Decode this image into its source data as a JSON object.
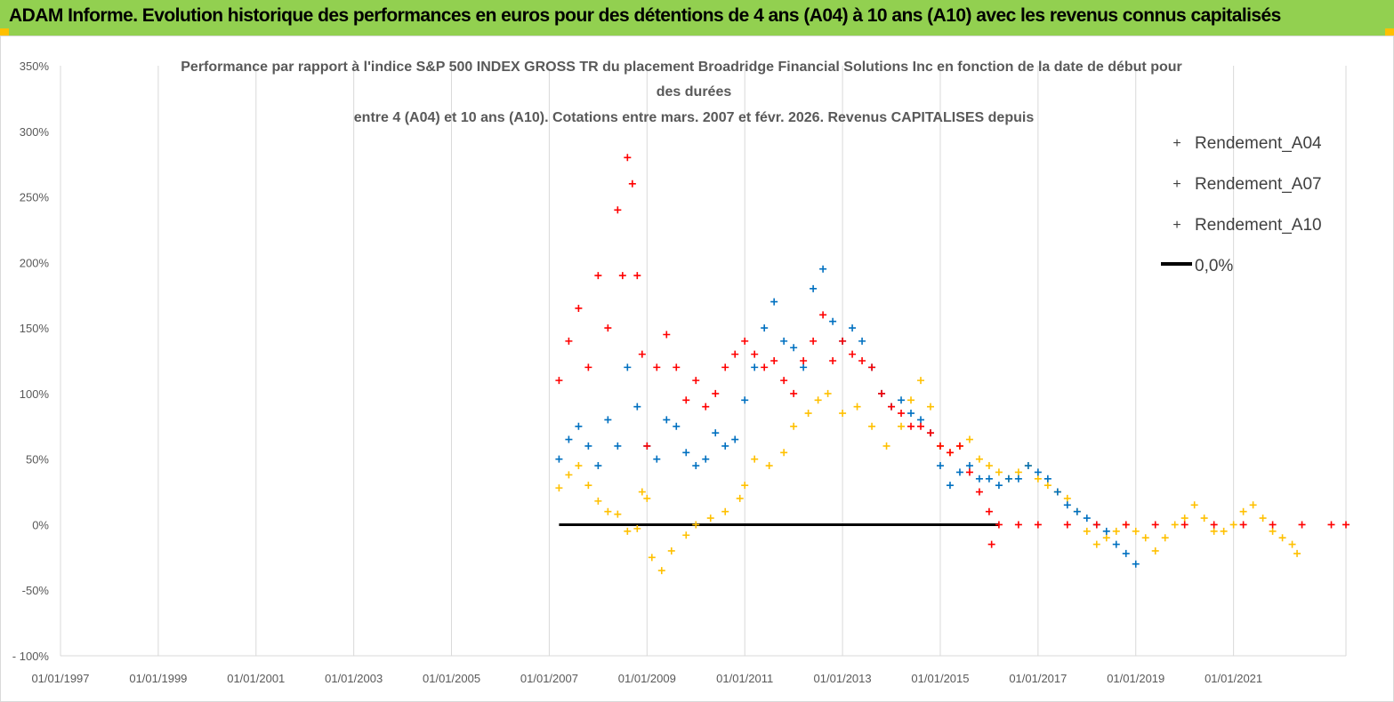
{
  "banner": {
    "title": "ADAM Informe. Evolution historique des performances en euros pour des détentions de 4 ans (A04) à 10 ans (A10) avec les revenus connus capitalisés",
    "background": "#92d050",
    "corner_color": "#ffc000"
  },
  "chart_data": {
    "type": "scatter",
    "title_lines": [
      "Performance par rapport à l'indice S&P 500 INDEX GROSS TR  du placement Broadridge Financial Solutions Inc en fonction de la date de début pour",
      "des durées",
      "entre 4 (A04) et 10 ans (A10). Cotations entre mars. 2007 et févr. 2026. Revenus CAPITALISES depuis"
    ],
    "xlabel": "",
    "ylabel": "",
    "xlim": [
      1997.0,
      2023.3
    ],
    "ylim": [
      -100,
      350
    ],
    "x_ticks": [
      1997,
      1999,
      2001,
      2003,
      2005,
      2007,
      2009,
      2011,
      2013,
      2015,
      2017,
      2019,
      2021
    ],
    "x_tick_labels": [
      "01/01/1997",
      "01/01/1999",
      "01/01/2001",
      "01/01/2003",
      "01/01/2005",
      "01/01/2007",
      "01/01/2009",
      "01/01/2011",
      "01/01/2013",
      "01/01/2015",
      "01/01/2017",
      "01/01/2019",
      "01/01/2021"
    ],
    "y_ticks": [
      -100,
      -50,
      0,
      50,
      100,
      150,
      200,
      250,
      300,
      350
    ],
    "y_tick_labels": [
      "- 100%",
      "-50%",
      "0%",
      "50%",
      "100%",
      "150%",
      "200%",
      "250%",
      "300%",
      "350%"
    ],
    "grid": "vertical",
    "legend_position": "right",
    "series": [
      {
        "name": "Rendement_A04",
        "marker": "+",
        "color": "#ffc000",
        "points": [
          [
            2007.2,
            28
          ],
          [
            2007.4,
            38
          ],
          [
            2007.6,
            45
          ],
          [
            2007.8,
            30
          ],
          [
            2008.0,
            18
          ],
          [
            2008.2,
            10
          ],
          [
            2008.4,
            8
          ],
          [
            2008.6,
            -5
          ],
          [
            2008.8,
            -3
          ],
          [
            2008.9,
            25
          ],
          [
            2009.0,
            20
          ],
          [
            2009.1,
            -25
          ],
          [
            2009.3,
            -35
          ],
          [
            2009.5,
            -20
          ],
          [
            2009.8,
            -8
          ],
          [
            2010.0,
            0
          ],
          [
            2010.3,
            5
          ],
          [
            2010.6,
            10
          ],
          [
            2010.9,
            20
          ],
          [
            2011.0,
            30
          ],
          [
            2011.2,
            50
          ],
          [
            2011.5,
            45
          ],
          [
            2011.8,
            55
          ],
          [
            2012.0,
            75
          ],
          [
            2012.3,
            85
          ],
          [
            2012.5,
            95
          ],
          [
            2012.7,
            100
          ],
          [
            2013.0,
            85
          ],
          [
            2013.3,
            90
          ],
          [
            2013.6,
            75
          ],
          [
            2013.9,
            60
          ],
          [
            2014.2,
            75
          ],
          [
            2014.4,
            95
          ],
          [
            2014.6,
            110
          ],
          [
            2014.8,
            90
          ],
          [
            2015.0,
            60
          ],
          [
            2015.2,
            55
          ],
          [
            2015.4,
            60
          ],
          [
            2015.6,
            65
          ],
          [
            2015.8,
            50
          ],
          [
            2016.0,
            45
          ],
          [
            2016.2,
            40
          ],
          [
            2016.4,
            35
          ],
          [
            2016.6,
            40
          ],
          [
            2016.8,
            45
          ],
          [
            2017.0,
            35
          ],
          [
            2017.2,
            30
          ],
          [
            2017.4,
            25
          ],
          [
            2017.6,
            20
          ],
          [
            2017.8,
            10
          ],
          [
            2018.0,
            -5
          ],
          [
            2018.2,
            -15
          ],
          [
            2018.4,
            -10
          ],
          [
            2018.6,
            -5
          ],
          [
            2018.8,
            0
          ],
          [
            2019.0,
            -5
          ],
          [
            2019.2,
            -10
          ],
          [
            2019.4,
            -20
          ],
          [
            2019.6,
            -10
          ],
          [
            2019.8,
            0
          ],
          [
            2020.0,
            5
          ],
          [
            2020.2,
            15
          ],
          [
            2020.4,
            5
          ],
          [
            2020.6,
            -5
          ],
          [
            2020.8,
            -5
          ],
          [
            2021.0,
            0
          ],
          [
            2021.2,
            10
          ],
          [
            2021.4,
            15
          ],
          [
            2021.6,
            5
          ],
          [
            2021.8,
            -5
          ],
          [
            2022.0,
            -10
          ],
          [
            2022.2,
            -15
          ],
          [
            2022.3,
            -22
          ]
        ]
      },
      {
        "name": "Rendement_A07",
        "marker": "+",
        "color": "#0070c0",
        "points": [
          [
            2007.2,
            50
          ],
          [
            2007.4,
            65
          ],
          [
            2007.6,
            75
          ],
          [
            2007.8,
            60
          ],
          [
            2008.0,
            45
          ],
          [
            2008.2,
            80
          ],
          [
            2008.4,
            60
          ],
          [
            2008.6,
            120
          ],
          [
            2008.8,
            90
          ],
          [
            2009.0,
            60
          ],
          [
            2009.2,
            50
          ],
          [
            2009.4,
            80
          ],
          [
            2009.6,
            75
          ],
          [
            2009.8,
            55
          ],
          [
            2010.0,
            45
          ],
          [
            2010.2,
            50
          ],
          [
            2010.4,
            70
          ],
          [
            2010.6,
            60
          ],
          [
            2010.8,
            65
          ],
          [
            2011.0,
            95
          ],
          [
            2011.2,
            120
          ],
          [
            2011.4,
            150
          ],
          [
            2011.6,
            170
          ],
          [
            2011.8,
            140
          ],
          [
            2012.0,
            135
          ],
          [
            2012.2,
            120
          ],
          [
            2012.4,
            180
          ],
          [
            2012.6,
            195
          ],
          [
            2012.8,
            155
          ],
          [
            2013.0,
            140
          ],
          [
            2013.2,
            150
          ],
          [
            2013.4,
            140
          ],
          [
            2013.6,
            120
          ],
          [
            2013.8,
            100
          ],
          [
            2014.0,
            90
          ],
          [
            2014.2,
            95
          ],
          [
            2014.4,
            85
          ],
          [
            2014.6,
            80
          ],
          [
            2014.8,
            70
          ],
          [
            2015.0,
            45
          ],
          [
            2015.2,
            30
          ],
          [
            2015.4,
            40
          ],
          [
            2015.6,
            45
          ],
          [
            2015.8,
            35
          ],
          [
            2016.0,
            35
          ],
          [
            2016.2,
            30
          ],
          [
            2016.4,
            35
          ],
          [
            2016.6,
            35
          ],
          [
            2016.8,
            45
          ],
          [
            2017.0,
            40
          ],
          [
            2017.2,
            35
          ],
          [
            2017.4,
            25
          ],
          [
            2017.6,
            15
          ],
          [
            2017.8,
            10
          ],
          [
            2018.0,
            5
          ],
          [
            2018.2,
            0
          ],
          [
            2018.4,
            -5
          ],
          [
            2018.6,
            -15
          ],
          [
            2018.8,
            -22
          ],
          [
            2019.0,
            -30
          ]
        ]
      },
      {
        "name": "Rendement_A10",
        "marker": "+",
        "color": "#ff0000",
        "points": [
          [
            2007.2,
            110
          ],
          [
            2007.4,
            140
          ],
          [
            2007.6,
            165
          ],
          [
            2007.8,
            120
          ],
          [
            2008.0,
            190
          ],
          [
            2008.2,
            150
          ],
          [
            2008.4,
            240
          ],
          [
            2008.5,
            190
          ],
          [
            2008.6,
            280
          ],
          [
            2008.7,
            260
          ],
          [
            2008.8,
            190
          ],
          [
            2008.9,
            130
          ],
          [
            2009.0,
            60
          ],
          [
            2009.2,
            120
          ],
          [
            2009.4,
            145
          ],
          [
            2009.6,
            120
          ],
          [
            2009.8,
            95
          ],
          [
            2010.0,
            110
          ],
          [
            2010.2,
            90
          ],
          [
            2010.4,
            100
          ],
          [
            2010.6,
            120
          ],
          [
            2010.8,
            130
          ],
          [
            2011.0,
            140
          ],
          [
            2011.2,
            130
          ],
          [
            2011.4,
            120
          ],
          [
            2011.6,
            125
          ],
          [
            2011.8,
            110
          ],
          [
            2012.0,
            100
          ],
          [
            2012.2,
            125
          ],
          [
            2012.4,
            140
          ],
          [
            2012.6,
            160
          ],
          [
            2012.8,
            125
          ],
          [
            2013.0,
            140
          ],
          [
            2013.2,
            130
          ],
          [
            2013.4,
            125
          ],
          [
            2013.6,
            120
          ],
          [
            2013.8,
            100
          ],
          [
            2014.0,
            90
          ],
          [
            2014.2,
            85
          ],
          [
            2014.4,
            75
          ],
          [
            2014.6,
            75
          ],
          [
            2014.8,
            70
          ],
          [
            2015.0,
            60
          ],
          [
            2015.2,
            55
          ],
          [
            2015.4,
            60
          ],
          [
            2015.6,
            40
          ],
          [
            2015.8,
            25
          ],
          [
            2016.0,
            10
          ],
          [
            2016.05,
            -15
          ],
          [
            2016.2,
            0
          ],
          [
            2016.6,
            0
          ],
          [
            2017.0,
            0
          ],
          [
            2017.6,
            0
          ],
          [
            2018.2,
            0
          ],
          [
            2018.8,
            0
          ],
          [
            2019.4,
            0
          ],
          [
            2020.0,
            0
          ],
          [
            2020.6,
            0
          ],
          [
            2021.2,
            0
          ],
          [
            2021.8,
            0
          ],
          [
            2022.4,
            0
          ],
          [
            2023.0,
            0
          ],
          [
            2023.3,
            0
          ]
        ]
      }
    ],
    "reference_line": {
      "name": "0,0%",
      "color": "#000000",
      "y": 0,
      "x_range": [
        2007.2,
        2016.2
      ]
    }
  }
}
